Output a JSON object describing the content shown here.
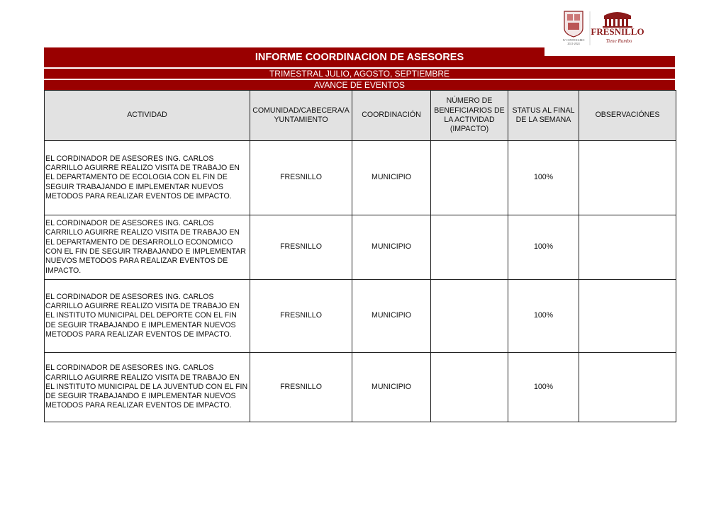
{
  "logo": {
    "seal_text": "IV CENTENARIO 2021-2024",
    "brand": "FRESNILLO",
    "tagline": "Tiene Rumbo",
    "color": "#8b1a1a"
  },
  "header": {
    "title": "INFORME COORDINACION DE ASESORES",
    "subtitle": "TRIMESTRAL JULIO, AGOSTO, SEPTIEMBRE",
    "section": "AVANCE DE EVENTOS",
    "accent": "#990000"
  },
  "table": {
    "columns": [
      "ACTIVIDAD",
      "COMUNIDAD/CABECERA/A YUNTAMIENTO",
      "COORDINACIÓN",
      "NÚMERO DE BENEFICIARIOS DE LA ACTIVIDAD (IMPACTO)",
      "STATUS AL FINAL DE LA SEMANA",
      "OBSERVACIÓNES"
    ],
    "rows": [
      {
        "actividad": "EL CORDINADOR DE ASESORES ING. CARLOS CARRILLO AGUIRRE REALIZO VISITA DE TRABAJO EN EL DEPARTAMENTO DE ECOLOGIA CON EL FIN DE SEGUIR TRABAJANDO E IMPLEMENTAR NUEVOS METODOS PARA REALIZAR EVENTOS DE IMPACTO.",
        "comunidad": "FRESNILLO",
        "coordinacion": "MUNICIPIO",
        "beneficiarios": "",
        "status": "100%",
        "observaciones": ""
      },
      {
        "actividad": "EL CORDINADOR DE ASESORES ING. CARLOS CARRILLO AGUIRRE REALIZO VISITA DE TRABAJO EN EL DEPARTAMENTO DE DESARROLLO ECONOMICO CON EL FIN DE SEGUIR TRABAJANDO E IMPLEMENTAR NUEVOS METODOS PARA REALIZAR EVENTOS DE IMPACTO.",
        "comunidad": "FRESNILLO",
        "coordinacion": "MUNICIPIO",
        "beneficiarios": "",
        "status": "100%",
        "observaciones": ""
      },
      {
        "actividad": "EL CORDINADOR DE ASESORES ING. CARLOS CARRILLO AGUIRRE REALIZO VISITA DE TRABAJO EN EL INSTITUTO MUNICIPAL DEL DEPORTE CON EL FIN DE SEGUIR TRABAJANDO E IMPLEMENTAR NUEVOS METODOS PARA REALIZAR EVENTOS DE IMPACTO.",
        "comunidad": "FRESNILLO",
        "coordinacion": "MUNICIPIO",
        "beneficiarios": "",
        "status": "100%",
        "observaciones": ""
      },
      {
        "actividad": "EL CORDINADOR DE ASESORES ING. CARLOS CARRILLO AGUIRRE REALIZO VISITA DE TRABAJO EN EL INSTITUTO MUNICIPAL DE LA JUVENTUD  CON EL FIN DE SEGUIR TRABAJANDO E IMPLEMENTAR NUEVOS METODOS PARA REALIZAR EVENTOS DE IMPACTO.",
        "comunidad": "FRESNILLO",
        "coordinacion": "MUNICIPIO",
        "beneficiarios": "",
        "status": "100%",
        "observaciones": ""
      }
    ]
  }
}
